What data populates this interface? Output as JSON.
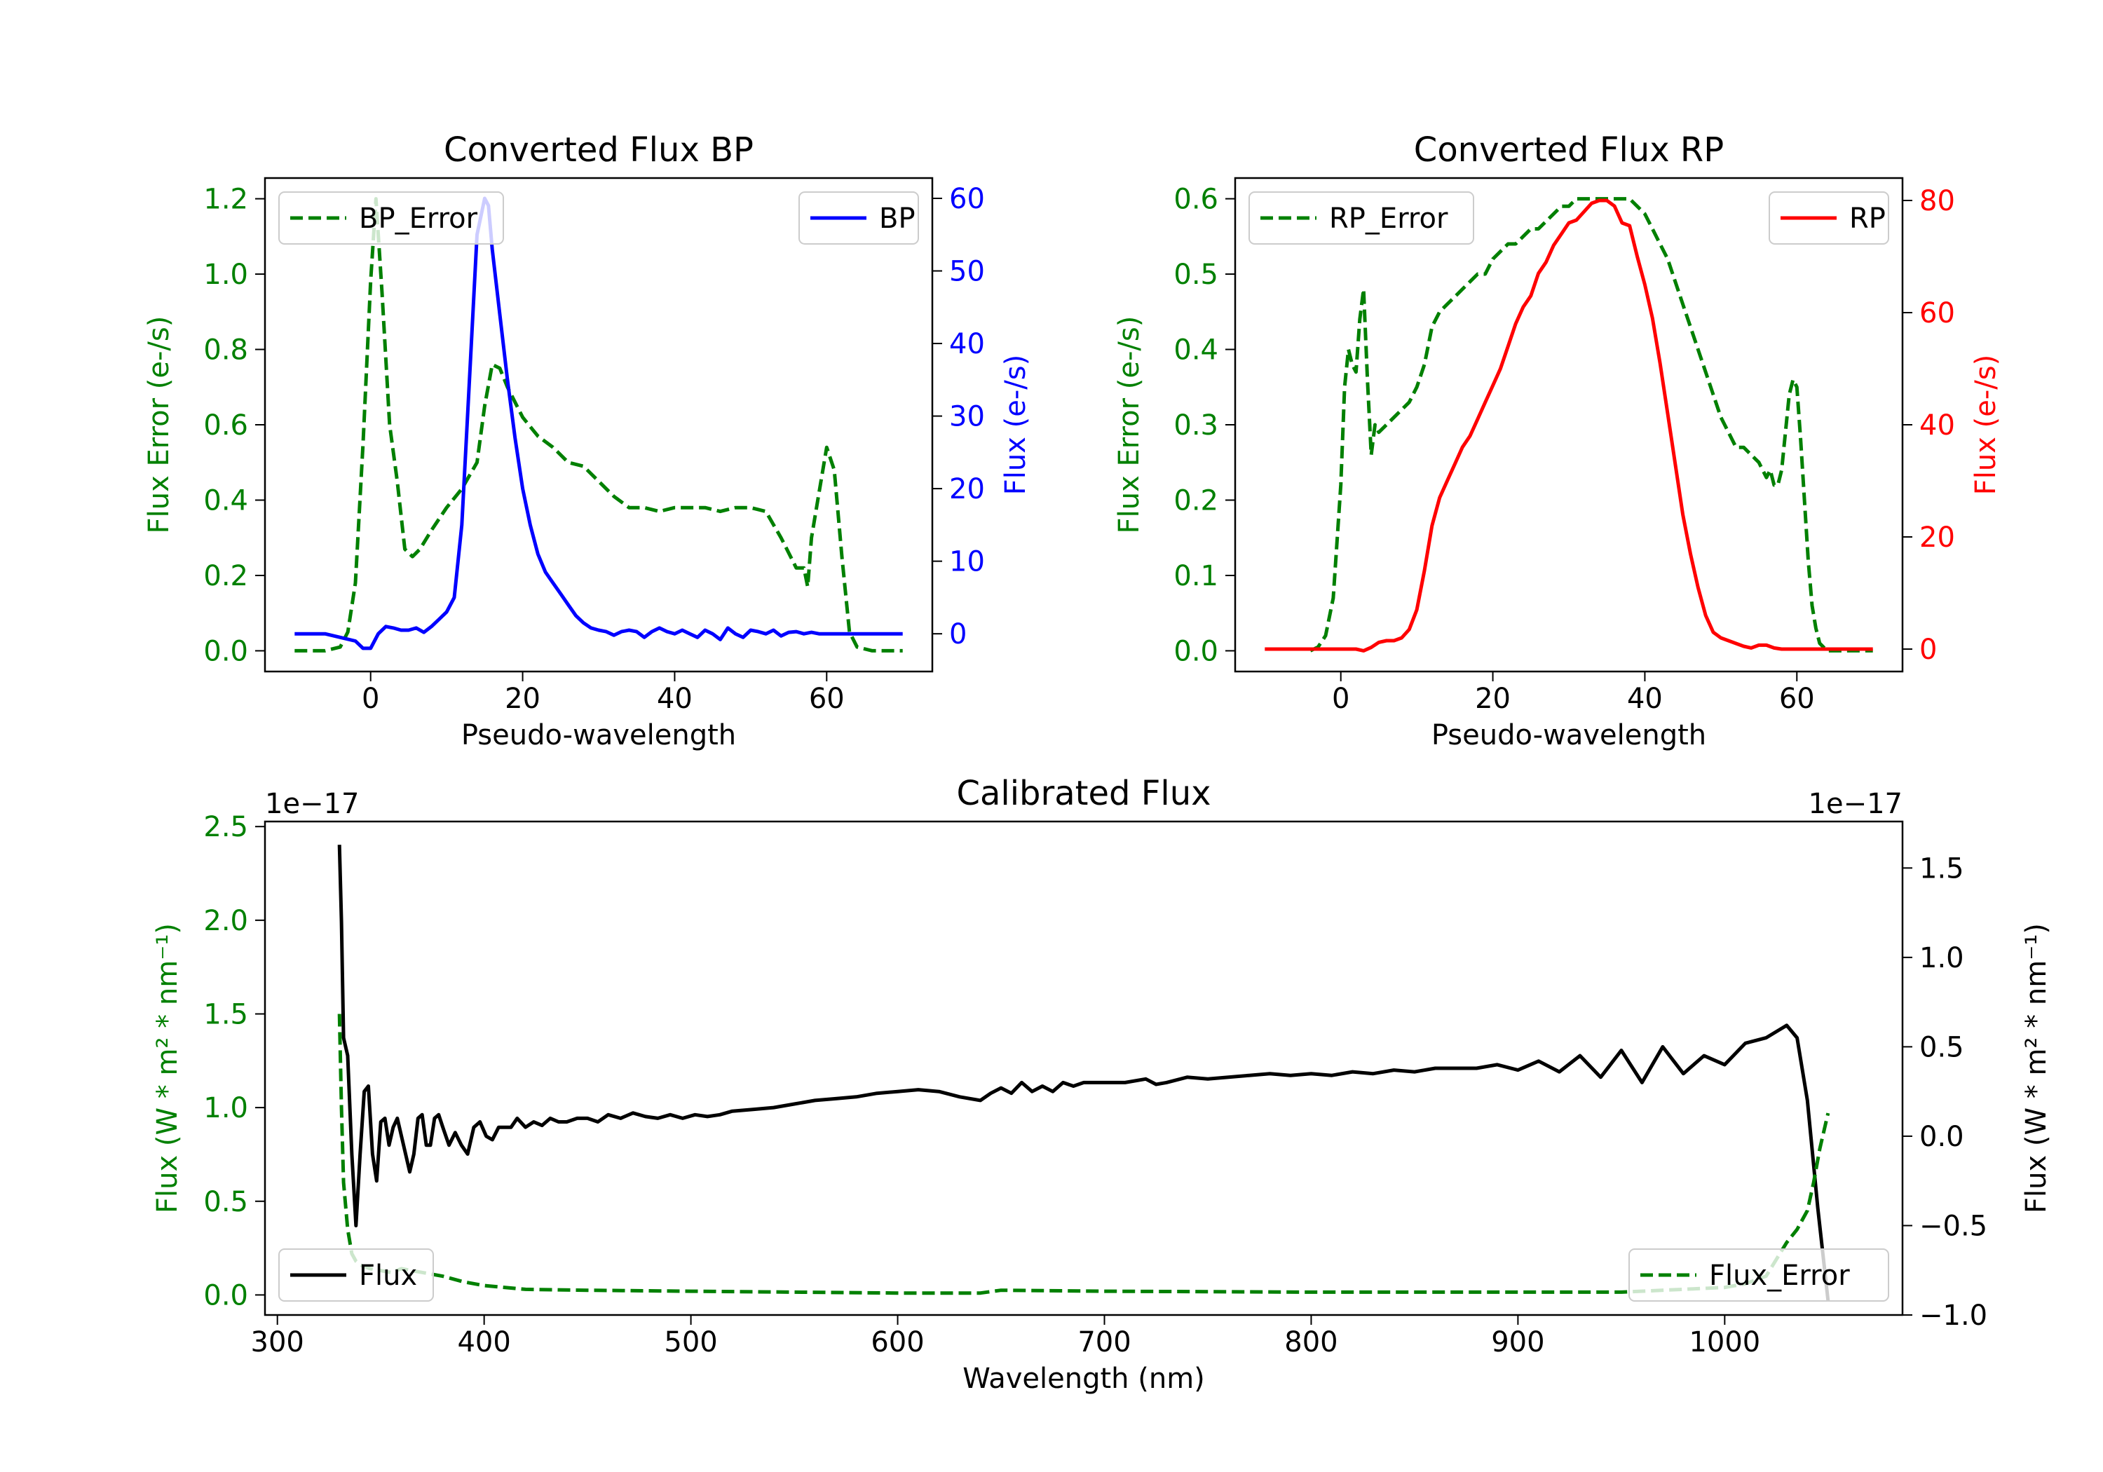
{
  "chart_data": [
    {
      "type": "line",
      "title": "Converted Flux BP",
      "xlabel": "Pseudo-wavelength",
      "xlim": [
        -13.9,
        73.9
      ],
      "xticks": [
        0,
        20,
        40,
        60
      ],
      "y_left": {
        "label": "Flux Error (e-/s)",
        "color": "#008000",
        "lim": [
          -0.055,
          1.255
        ],
        "ticks": [
          0.0,
          0.2,
          0.4,
          0.6,
          0.8,
          1.0,
          1.2
        ],
        "tick_labels": [
          "0.0",
          "0.2",
          "0.4",
          "0.6",
          "0.8",
          "1.0",
          "1.2"
        ]
      },
      "y_right": {
        "label": "Flux (e-/s)",
        "color": "#0000ff",
        "lim": [
          -5.2,
          62.8
        ],
        "ticks": [
          0,
          10,
          20,
          30,
          40,
          50,
          60
        ],
        "tick_labels": [
          "0",
          "10",
          "20",
          "30",
          "40",
          "50",
          "60"
        ]
      },
      "series": [
        {
          "name": "BP_Error",
          "axis": "left",
          "color": "#008000",
          "style": "dashed",
          "x": [
            -10,
            -6,
            -4,
            -3,
            -2,
            -1,
            0,
            0.7,
            1.5,
            2.5,
            3.5,
            4.5,
            5.5,
            6.5,
            8,
            10,
            12,
            14,
            15,
            16,
            17,
            18,
            20,
            22,
            24,
            26,
            28,
            30,
            32,
            34,
            36,
            38,
            40,
            42,
            44,
            46,
            48,
            50,
            52,
            54,
            55,
            56,
            57,
            57.5,
            58,
            59,
            60,
            61,
            62,
            63,
            64,
            66,
            70
          ],
          "y": [
            0,
            0,
            0.01,
            0.05,
            0.18,
            0.55,
            0.98,
            1.2,
            0.95,
            0.6,
            0.45,
            0.27,
            0.25,
            0.27,
            0.32,
            0.38,
            0.43,
            0.5,
            0.65,
            0.76,
            0.75,
            0.7,
            0.62,
            0.57,
            0.54,
            0.5,
            0.49,
            0.45,
            0.41,
            0.38,
            0.38,
            0.37,
            0.38,
            0.38,
            0.38,
            0.37,
            0.38,
            0.38,
            0.37,
            0.3,
            0.26,
            0.22,
            0.22,
            0.17,
            0.3,
            0.42,
            0.54,
            0.48,
            0.25,
            0.05,
            0.01,
            0,
            0
          ]
        },
        {
          "name": "BP",
          "axis": "right",
          "color": "#0000ff",
          "style": "solid",
          "x": [
            -10,
            -6,
            -4,
            -2,
            -1,
            0,
            1,
            2,
            3,
            4,
            5,
            6,
            7,
            8,
            9,
            10,
            11,
            12,
            13,
            14,
            15,
            15.5,
            16,
            17,
            18,
            19,
            20,
            21,
            22,
            23,
            24,
            25,
            26,
            27,
            28,
            29,
            30,
            31,
            32,
            33,
            34,
            35,
            36,
            37,
            38,
            39,
            40,
            41,
            42,
            43,
            44,
            45,
            46,
            47,
            48,
            49,
            50,
            51,
            52,
            53,
            54,
            55,
            56,
            57,
            58,
            59,
            60,
            62,
            64,
            66,
            70
          ],
          "y": [
            0,
            0,
            -0.5,
            -1,
            -2,
            -2,
            0,
            1,
            0.8,
            0.5,
            0.5,
            0.8,
            0.2,
            1,
            2,
            3,
            5,
            15,
            35,
            55,
            60,
            59,
            53,
            44,
            35,
            27,
            20,
            15,
            11,
            8.5,
            7,
            5.5,
            4,
            2.5,
            1.5,
            0.8,
            0.5,
            0.3,
            -0.2,
            0.3,
            0.5,
            0.3,
            -0.5,
            0.3,
            0.8,
            0.3,
            0,
            0.5,
            0,
            -0.5,
            0.5,
            0,
            -0.8,
            0.8,
            0,
            -0.5,
            0.5,
            0.3,
            0,
            0.5,
            -0.3,
            0.2,
            0.3,
            0,
            0.2,
            0,
            0,
            0,
            0,
            0,
            0
          ]
        }
      ],
      "legend": [
        {
          "label": "BP_Error",
          "position": "upper-left"
        },
        {
          "label": "BP",
          "position": "upper-right"
        }
      ]
    },
    {
      "type": "line",
      "title": "Converted Flux RP",
      "xlabel": "Pseudo-wavelength",
      "xlim": [
        -13.9,
        73.9
      ],
      "xticks": [
        0,
        20,
        40,
        60
      ],
      "y_left": {
        "label": "Flux Error (e-/s)",
        "color": "#008000",
        "lim": [
          -0.0275,
          0.6275
        ],
        "ticks": [
          0.0,
          0.1,
          0.2,
          0.3,
          0.4,
          0.5,
          0.6
        ],
        "tick_labels": [
          "0.0",
          "0.1",
          "0.2",
          "0.3",
          "0.4",
          "0.5",
          "0.6"
        ]
      },
      "y_right": {
        "label": "Flux (e-/s)",
        "color": "#ff0000",
        "lim": [
          -4,
          84
        ],
        "ticks": [
          0,
          20,
          40,
          60,
          80
        ],
        "tick_labels": [
          "0",
          "20",
          "40",
          "60",
          "80"
        ]
      },
      "series": [
        {
          "name": "RP_Error",
          "axis": "left",
          "color": "#008000",
          "style": "dashed",
          "x": [
            -4,
            -3,
            -2,
            -1,
            0,
            0.5,
            1,
            1.5,
            2,
            2.5,
            3,
            3.5,
            4,
            4.5,
            5,
            6,
            7,
            8,
            9,
            10,
            11,
            12,
            13,
            14,
            15,
            16,
            17,
            18,
            19,
            20,
            21,
            22,
            23,
            24,
            25,
            26,
            27,
            28,
            29,
            30,
            31,
            32,
            33,
            34,
            35,
            36,
            37,
            38,
            39,
            40,
            41,
            42,
            43,
            44,
            45,
            46,
            47,
            48,
            49,
            50,
            51,
            52,
            53,
            54,
            55,
            56,
            56.5,
            57,
            57.5,
            58,
            58.5,
            59,
            59.5,
            60,
            60.5,
            61,
            61.5,
            62,
            62.5,
            63,
            63.5,
            64,
            66,
            70
          ],
          "y": [
            0,
            0.005,
            0.02,
            0.07,
            0.22,
            0.35,
            0.4,
            0.38,
            0.37,
            0.44,
            0.48,
            0.36,
            0.26,
            0.3,
            0.29,
            0.3,
            0.31,
            0.32,
            0.33,
            0.35,
            0.38,
            0.43,
            0.45,
            0.46,
            0.47,
            0.48,
            0.49,
            0.5,
            0.5,
            0.52,
            0.53,
            0.54,
            0.54,
            0.55,
            0.56,
            0.56,
            0.57,
            0.58,
            0.59,
            0.59,
            0.6,
            0.6,
            0.6,
            0.6,
            0.6,
            0.6,
            0.6,
            0.6,
            0.59,
            0.58,
            0.56,
            0.54,
            0.52,
            0.49,
            0.46,
            0.43,
            0.4,
            0.37,
            0.34,
            0.31,
            0.29,
            0.27,
            0.27,
            0.26,
            0.25,
            0.23,
            0.24,
            0.22,
            0.22,
            0.24,
            0.29,
            0.34,
            0.36,
            0.35,
            0.28,
            0.2,
            0.12,
            0.06,
            0.03,
            0.01,
            0.005,
            0,
            0,
            0
          ]
        },
        {
          "name": "RP",
          "axis": "right",
          "color": "#ff0000",
          "style": "solid",
          "x": [
            -10,
            -4,
            0,
            2,
            3,
            4,
            5,
            6,
            7,
            8,
            9,
            10,
            11,
            12,
            13,
            14,
            15,
            16,
            17,
            18,
            19,
            20,
            21,
            22,
            23,
            24,
            25,
            26,
            27,
            28,
            29,
            30,
            31,
            32,
            33,
            34,
            35,
            36,
            37,
            38,
            39,
            40,
            41,
            42,
            43,
            44,
            45,
            46,
            47,
            48,
            49,
            50,
            51,
            52,
            53,
            54,
            55,
            56,
            57,
            58,
            59,
            60,
            62,
            64,
            66,
            70
          ],
          "y": [
            0,
            0,
            0,
            0,
            -0.3,
            0.3,
            1.2,
            1.5,
            1.5,
            2,
            3.5,
            7,
            14,
            22,
            27,
            30,
            33,
            36,
            38,
            41,
            44,
            47,
            50,
            54,
            58,
            61,
            63,
            67,
            69,
            72,
            74,
            76,
            76.5,
            78,
            79.5,
            80,
            80,
            79,
            76,
            75.5,
            70,
            65,
            59,
            51,
            42,
            33,
            24,
            17,
            11,
            6,
            3,
            2,
            1.5,
            1,
            0.5,
            0.2,
            0.7,
            0.7,
            0.2,
            0,
            0,
            0,
            0,
            0,
            0,
            0
          ]
        }
      ],
      "legend": [
        {
          "label": "RP_Error",
          "position": "upper-left"
        },
        {
          "label": "RP",
          "position": "upper-right"
        }
      ]
    },
    {
      "type": "line",
      "title": "Calibrated Flux",
      "xlabel": "Wavelength (nm)",
      "xlim": [
        294,
        1086
      ],
      "xticks": [
        300,
        400,
        500,
        600,
        700,
        800,
        900,
        1000
      ],
      "y_left": {
        "label": "Flux (W * m² * nm⁻¹)",
        "color": "#008000",
        "offset_text": "1e−17",
        "lim": [
          -0.107,
          2.527
        ],
        "ticks": [
          0.0,
          0.5,
          1.0,
          1.5,
          2.0,
          2.5
        ],
        "tick_labels": [
          "0.0",
          "0.5",
          "1.0",
          "1.5",
          "2.0",
          "2.5"
        ]
      },
      "y_right": {
        "label": "Flux (W * m² * nm⁻¹)",
        "color": "#000000",
        "offset_text": "1e−17",
        "lim": [
          -1.0,
          1.76
        ],
        "ticks": [
          -1.0,
          -0.5,
          0.0,
          0.5,
          1.0,
          1.5
        ],
        "tick_labels": [
          "−1.0",
          "−0.5",
          "0.0",
          "0.5",
          "1.0",
          "1.5"
        ]
      },
      "series": [
        {
          "name": "Flux",
          "axis": "right",
          "color": "#000000",
          "style": "solid",
          "x": [
            330,
            331,
            332,
            334,
            336,
            338,
            340,
            342,
            344,
            346,
            348,
            350,
            352,
            354,
            356,
            358,
            360,
            362,
            364,
            366,
            368,
            370,
            372,
            374,
            376,
            378,
            380,
            383,
            386,
            389,
            392,
            395,
            398,
            401,
            404,
            407,
            410,
            413,
            416,
            420,
            424,
            428,
            432,
            436,
            440,
            445,
            450,
            455,
            460,
            466,
            472,
            478,
            484,
            490,
            496,
            502,
            508,
            514,
            520,
            530,
            540,
            550,
            560,
            570,
            580,
            590,
            600,
            610,
            620,
            630,
            640,
            645,
            650,
            655,
            660,
            665,
            670,
            675,
            680,
            685,
            690,
            700,
            710,
            720,
            725,
            730,
            740,
            750,
            760,
            770,
            780,
            790,
            800,
            810,
            820,
            830,
            840,
            850,
            860,
            870,
            880,
            890,
            900,
            910,
            920,
            930,
            940,
            950,
            960,
            970,
            980,
            990,
            1000,
            1010,
            1020,
            1030,
            1035,
            1040,
            1045,
            1050
          ],
          "y": [
            1.63,
            1.2,
            0.55,
            0.45,
            -0.1,
            -0.5,
            -0.1,
            0.25,
            0.28,
            -0.1,
            -0.25,
            0.08,
            0.1,
            -0.05,
            0.05,
            0.1,
            0.0,
            -0.1,
            -0.2,
            -0.1,
            0.1,
            0.12,
            -0.05,
            -0.05,
            0.1,
            0.12,
            0.05,
            -0.05,
            0.02,
            -0.05,
            -0.1,
            0.05,
            0.08,
            0.0,
            -0.02,
            0.05,
            0.05,
            0.05,
            0.1,
            0.05,
            0.08,
            0.06,
            0.1,
            0.08,
            0.08,
            0.1,
            0.1,
            0.08,
            0.12,
            0.1,
            0.13,
            0.11,
            0.1,
            0.12,
            0.1,
            0.12,
            0.11,
            0.12,
            0.14,
            0.15,
            0.16,
            0.18,
            0.2,
            0.21,
            0.22,
            0.24,
            0.25,
            0.26,
            0.25,
            0.22,
            0.2,
            0.24,
            0.27,
            0.24,
            0.3,
            0.25,
            0.28,
            0.25,
            0.3,
            0.28,
            0.3,
            0.3,
            0.3,
            0.32,
            0.29,
            0.3,
            0.33,
            0.32,
            0.33,
            0.34,
            0.35,
            0.34,
            0.35,
            0.34,
            0.36,
            0.35,
            0.37,
            0.36,
            0.38,
            0.38,
            0.38,
            0.4,
            0.37,
            0.42,
            0.36,
            0.45,
            0.33,
            0.48,
            0.3,
            0.5,
            0.35,
            0.45,
            0.4,
            0.52,
            0.55,
            0.62,
            0.55,
            0.2,
            -0.4,
            -0.92
          ]
        },
        {
          "name": "Flux_Error",
          "axis": "left",
          "color": "#008000",
          "style": "dashed",
          "x": [
            330,
            331,
            332,
            334,
            336,
            338,
            340,
            345,
            350,
            355,
            360,
            365,
            370,
            380,
            390,
            400,
            420,
            450,
            500,
            550,
            600,
            640,
            650,
            700,
            800,
            900,
            950,
            1000,
            1010,
            1020,
            1030,
            1035,
            1040,
            1043,
            1046,
            1050
          ],
          "y": [
            1.5,
            1.0,
            0.6,
            0.35,
            0.22,
            0.18,
            0.16,
            0.14,
            0.13,
            0.12,
            0.14,
            0.13,
            0.12,
            0.1,
            0.07,
            0.05,
            0.03,
            0.025,
            0.02,
            0.015,
            0.01,
            0.01,
            0.025,
            0.02,
            0.015,
            0.015,
            0.015,
            0.04,
            0.06,
            0.1,
            0.28,
            0.35,
            0.45,
            0.6,
            0.78,
            0.97
          ]
        }
      ],
      "legend": [
        {
          "label": "Flux",
          "position": "lower-left"
        },
        {
          "label": "Flux_Error",
          "position": "lower-right"
        }
      ]
    }
  ]
}
